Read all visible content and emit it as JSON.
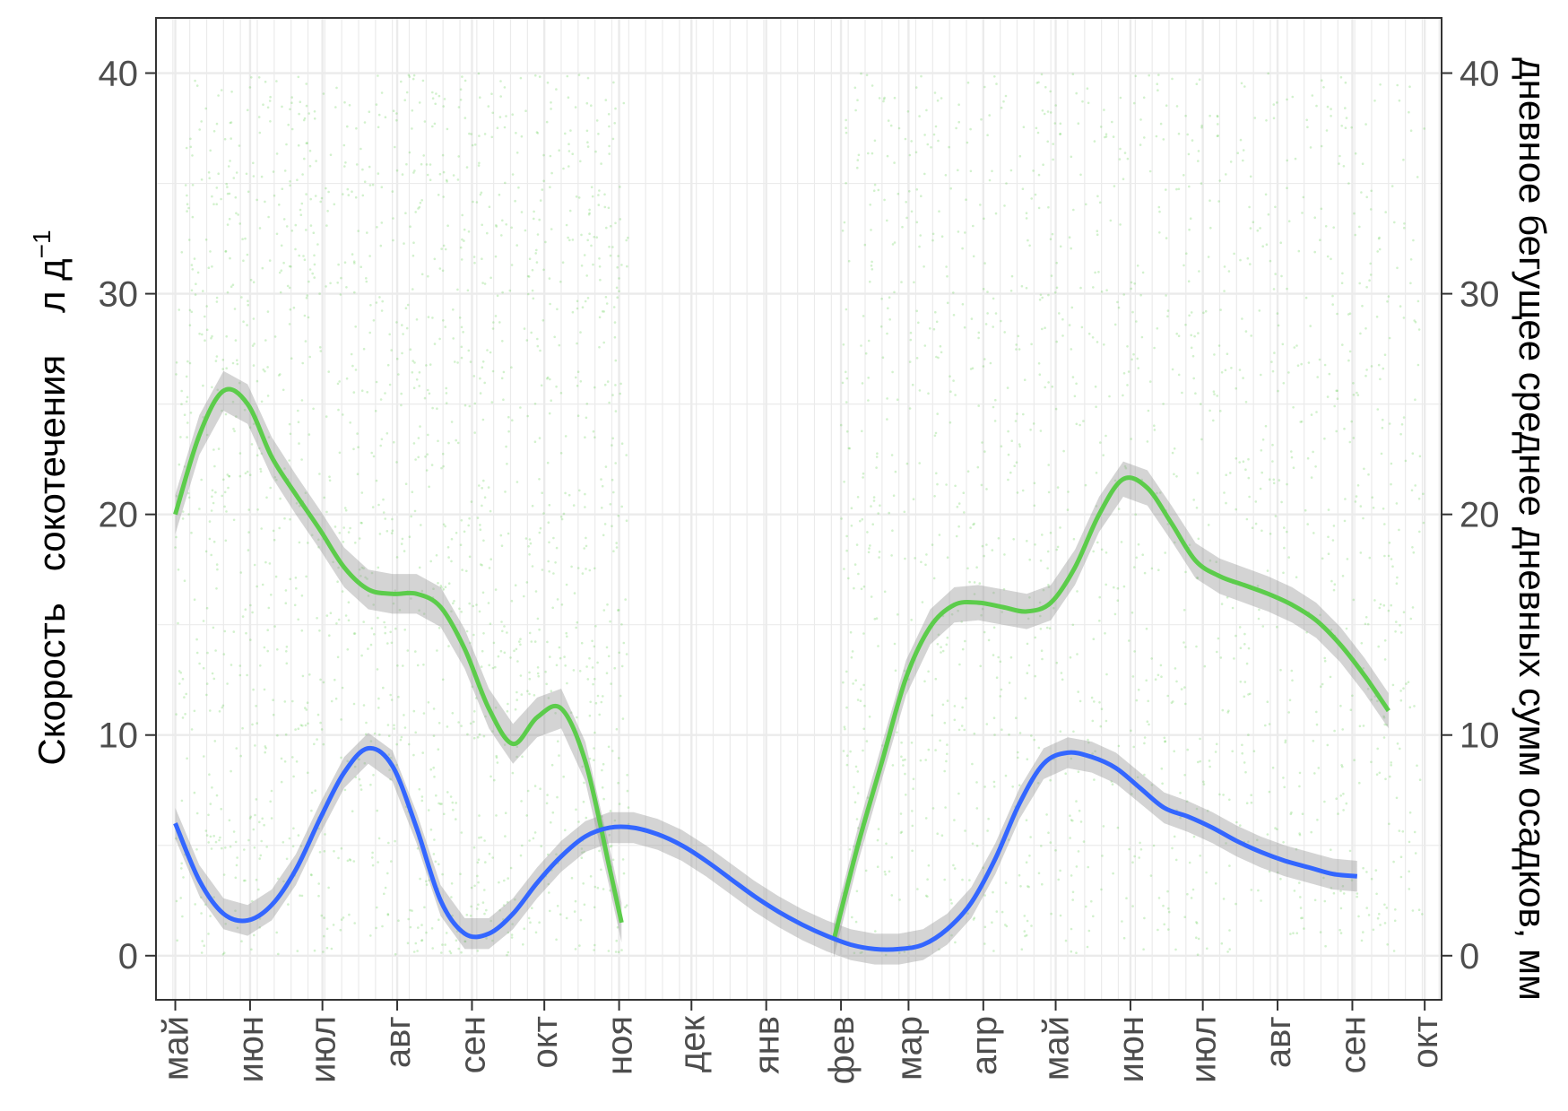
{
  "chart_data": {
    "type": "line",
    "title": "",
    "ylabel_left": "Скорость   сокотечения    л д",
    "ylabel_left_superscript": "−1",
    "ylabel_right": "дневное бегущее среднее дневных сумм осадков, мм",
    "xlabel": "",
    "x_axis": "date",
    "xlim": [
      "2016-04-23",
      "2017-10-08"
    ],
    "ylim": [
      -2,
      42.5
    ],
    "grid": true,
    "legend": "none",
    "x_ticks": [
      {
        "date": "2016-05-01",
        "label": "май"
      },
      {
        "date": "2016-06-01",
        "label": "июн"
      },
      {
        "date": "2016-07-01",
        "label": "июл"
      },
      {
        "date": "2016-08-01",
        "label": "авг"
      },
      {
        "date": "2016-09-01",
        "label": "сен"
      },
      {
        "date": "2016-10-01",
        "label": "окт"
      },
      {
        "date": "2016-11-01",
        "label": "ноя"
      },
      {
        "date": "2016-12-01",
        "label": "дек"
      },
      {
        "date": "2017-01-01",
        "label": "янв"
      },
      {
        "date": "2017-02-01",
        "label": "фев"
      },
      {
        "date": "2017-03-01",
        "label": "мар"
      },
      {
        "date": "2017-04-01",
        "label": "апр"
      },
      {
        "date": "2017-05-01",
        "label": "май"
      },
      {
        "date": "2017-06-01",
        "label": "июн"
      },
      {
        "date": "2017-07-01",
        "label": "июл"
      },
      {
        "date": "2017-08-01",
        "label": "авг"
      },
      {
        "date": "2017-09-01",
        "label": "сен"
      },
      {
        "date": "2017-10-01",
        "label": "окт"
      }
    ],
    "y_ticks_left": [
      "0",
      "10",
      "20",
      "30",
      "40"
    ],
    "y_ticks_right": [
      "0",
      "10",
      "20",
      "30",
      "40"
    ],
    "series": [
      {
        "color": "#5ccc4b",
        "band": 0.9,
        "points": [
          [
            "2016-05-01",
            20.0
          ],
          [
            "2016-05-11",
            23.6
          ],
          [
            "2016-05-21",
            25.6
          ],
          [
            "2016-05-31",
            25.0
          ],
          [
            "2016-06-10",
            22.6
          ],
          [
            "2016-06-20",
            20.9
          ],
          [
            "2016-06-30",
            19.3
          ],
          [
            "2016-07-10",
            17.6
          ],
          [
            "2016-07-20",
            16.6
          ],
          [
            "2016-07-30",
            16.4
          ],
          [
            "2016-08-09",
            16.4
          ],
          [
            "2016-08-19",
            15.8
          ],
          [
            "2016-08-29",
            13.9
          ],
          [
            "2016-09-08",
            11.2
          ],
          [
            "2016-09-18",
            9.6
          ],
          [
            "2016-09-28",
            10.8
          ],
          [
            "2016-10-08",
            11.2
          ],
          [
            "2016-10-18",
            8.8
          ],
          [
            "2016-10-28",
            4.0
          ],
          [
            "2016-11-02",
            1.5
          ]
        ]
      },
      {
        "color": "#5ccc4b",
        "band": 0.8,
        "points": [
          [
            "2017-01-29",
            0.7
          ],
          [
            "2017-02-08",
            5.0
          ],
          [
            "2017-02-18",
            8.8
          ],
          [
            "2017-02-28",
            12.6
          ],
          [
            "2017-03-10",
            14.9
          ],
          [
            "2017-03-20",
            15.9
          ],
          [
            "2017-03-30",
            16.0
          ],
          [
            "2017-04-09",
            15.8
          ],
          [
            "2017-04-19",
            15.6
          ],
          [
            "2017-04-29",
            16.0
          ],
          [
            "2017-05-09",
            17.6
          ],
          [
            "2017-05-19",
            20.0
          ],
          [
            "2017-05-29",
            21.6
          ],
          [
            "2017-06-08",
            21.2
          ],
          [
            "2017-06-18",
            19.6
          ],
          [
            "2017-06-28",
            17.9
          ],
          [
            "2017-07-08",
            17.2
          ],
          [
            "2017-07-18",
            16.8
          ],
          [
            "2017-07-28",
            16.4
          ],
          [
            "2017-08-07",
            15.9
          ],
          [
            "2017-08-17",
            15.2
          ],
          [
            "2017-08-27",
            14.1
          ],
          [
            "2017-09-06",
            12.7
          ],
          [
            "2017-09-16",
            11.1
          ]
        ]
      },
      {
        "color": "#3366ff",
        "band": 0.7,
        "points": [
          [
            "2016-05-01",
            6.0
          ],
          [
            "2016-05-11",
            3.4
          ],
          [
            "2016-05-21",
            1.9
          ],
          [
            "2016-05-31",
            1.6
          ],
          [
            "2016-06-10",
            2.3
          ],
          [
            "2016-06-20",
            3.9
          ],
          [
            "2016-06-30",
            6.2
          ],
          [
            "2016-07-10",
            8.3
          ],
          [
            "2016-07-20",
            9.4
          ],
          [
            "2016-07-30",
            8.6
          ],
          [
            "2016-08-09",
            5.8
          ],
          [
            "2016-08-19",
            2.5
          ],
          [
            "2016-08-29",
            1.0
          ],
          [
            "2016-09-08",
            1.0
          ],
          [
            "2016-09-18",
            1.9
          ],
          [
            "2016-09-28",
            3.3
          ],
          [
            "2016-10-08",
            4.5
          ],
          [
            "2016-10-18",
            5.4
          ],
          [
            "2016-10-28",
            5.8
          ],
          [
            "2016-11-07",
            5.8
          ],
          [
            "2016-11-17",
            5.5
          ],
          [
            "2016-11-27",
            5.0
          ],
          [
            "2016-12-07",
            4.3
          ],
          [
            "2016-12-17",
            3.5
          ],
          [
            "2016-12-27",
            2.7
          ],
          [
            "2017-01-06",
            2.0
          ],
          [
            "2017-01-16",
            1.4
          ],
          [
            "2017-01-26",
            0.9
          ],
          [
            "2017-02-05",
            0.5
          ],
          [
            "2017-02-15",
            0.3
          ],
          [
            "2017-02-25",
            0.3
          ],
          [
            "2017-03-07",
            0.5
          ],
          [
            "2017-03-17",
            1.2
          ],
          [
            "2017-03-27",
            2.4
          ],
          [
            "2017-04-06",
            4.4
          ],
          [
            "2017-04-16",
            6.9
          ],
          [
            "2017-04-26",
            8.7
          ],
          [
            "2017-05-06",
            9.2
          ],
          [
            "2017-05-16",
            9.0
          ],
          [
            "2017-05-26",
            8.5
          ],
          [
            "2017-06-05",
            7.6
          ],
          [
            "2017-06-15",
            6.7
          ],
          [
            "2017-06-25",
            6.3
          ],
          [
            "2017-07-05",
            5.8
          ],
          [
            "2017-07-15",
            5.2
          ],
          [
            "2017-07-25",
            4.7
          ],
          [
            "2017-08-04",
            4.3
          ],
          [
            "2017-08-14",
            4.0
          ],
          [
            "2017-08-24",
            3.7
          ],
          [
            "2017-09-03",
            3.6
          ]
        ]
      }
    ],
    "scatter_color": "#5ccc4b"
  }
}
